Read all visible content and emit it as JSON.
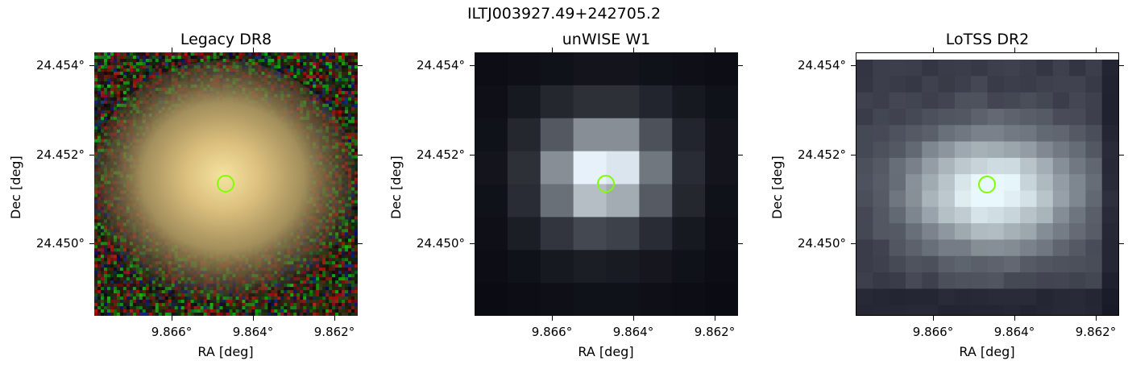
{
  "figure": {
    "title": "ILTJ003927.49+242705.2"
  },
  "panels": [
    {
      "title": "Legacy DR8",
      "ylabel": "Dec [deg]",
      "xlabel": "RA [deg]",
      "yticks": [
        "24.454°",
        "24.452°",
        "24.450°"
      ],
      "xticks": [
        "9.866°",
        "9.864°",
        "9.862°"
      ],
      "image": "optical composite: noisy colored background with diffuse yellowish galaxy",
      "marker_color": "#7fff00"
    },
    {
      "title": "unWISE W1",
      "ylabel": "Dec [deg]",
      "xlabel": "RA [deg]",
      "yticks": [
        "24.454°",
        "24.452°",
        "24.450°"
      ],
      "xticks": [
        "9.866°",
        "9.864°",
        "9.862°"
      ],
      "image": "infrared coarse-pixel bone colormap source",
      "marker_color": "#7fff00"
    },
    {
      "title": "LoTSS DR2",
      "ylabel": "Dec [deg]",
      "xlabel": "RA [deg]",
      "yticks": [
        "24.454°",
        "24.452°",
        "24.450°"
      ],
      "xticks": [
        "9.866°",
        "9.864°",
        "9.862°"
      ],
      "image": "radio map bone colormap extended source",
      "marker_color": "#7fff00"
    }
  ],
  "colors": {
    "marker": "#7fff00"
  }
}
